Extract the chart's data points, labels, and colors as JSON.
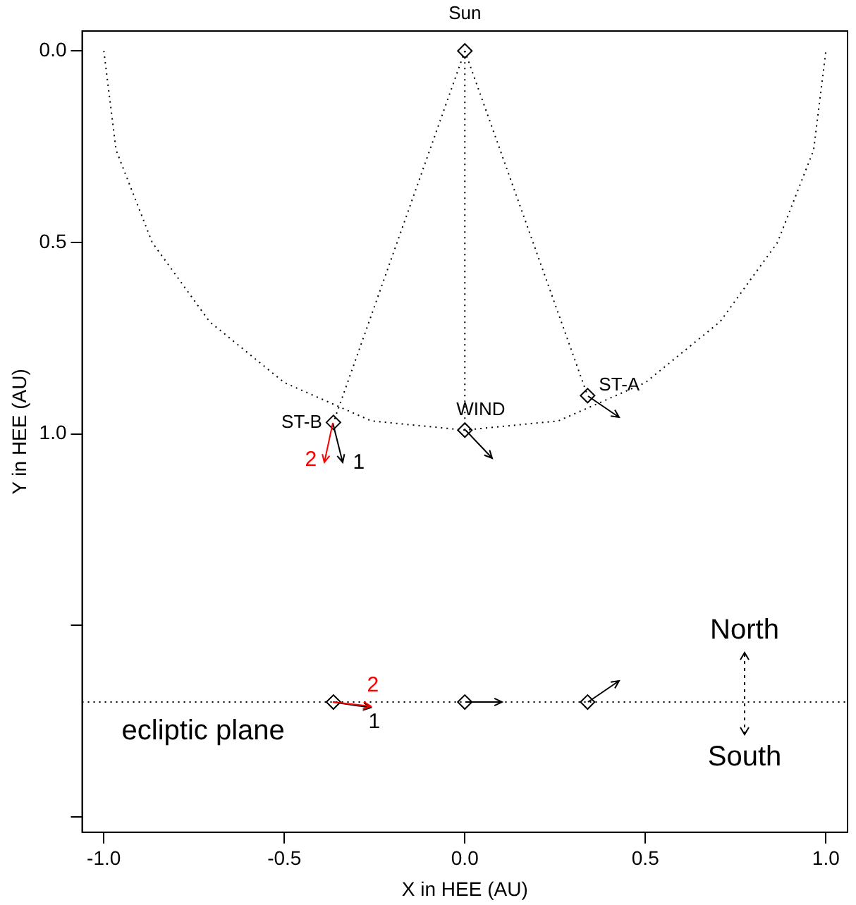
{
  "chart_data": {
    "type": "scatter",
    "xlabel": "X in HEE (AU)",
    "ylabel": "Y in HEE (AU)",
    "xlim": [
      -1.06,
      1.06
    ],
    "ylim": [
      2.04,
      -0.052
    ],
    "xticks": [
      {
        "value": -1,
        "label": "-1.0"
      },
      {
        "value": -0.5,
        "label": "-0.5"
      },
      {
        "value": 0,
        "label": "0.0"
      },
      {
        "value": 0.5,
        "label": "0.5"
      },
      {
        "value": 1,
        "label": "1.0"
      }
    ],
    "yticks": [
      {
        "value": 0,
        "label": "0.0"
      },
      {
        "value": 0.5,
        "label": "0.5"
      },
      {
        "value": 1,
        "label": "1.0"
      },
      {
        "value": 1.5,
        "label": null
      },
      {
        "value": 2,
        "label": null
      }
    ],
    "legend": false,
    "series": [
      {
        "type": "line",
        "line_style": "dotted",
        "marker": "none",
        "color": "#000000",
        "x": [
          -1,
          -0.966,
          -0.866,
          -0.707,
          -0.5,
          -0.259,
          0,
          0.259,
          0.5,
          0.707,
          0.866,
          0.966,
          1
        ],
        "values": [
          0,
          0.259,
          0.5,
          0.707,
          0.866,
          0.966,
          0.99,
          0.966,
          0.866,
          0.707,
          0.5,
          0.259,
          0
        ]
      },
      {
        "type": "line",
        "line_style": "dotted",
        "marker": "none",
        "color": "#000000",
        "x": [
          0,
          -0.364
        ],
        "values": [
          0,
          0.97
        ]
      },
      {
        "type": "line",
        "line_style": "dotted",
        "marker": "none",
        "color": "#000000",
        "x": [
          0,
          0
        ],
        "values": [
          0,
          0.99
        ]
      },
      {
        "type": "line",
        "line_style": "dotted",
        "marker": "none",
        "color": "#000000",
        "x": [
          0,
          0.34
        ],
        "values": [
          0,
          0.9
        ]
      },
      {
        "marker": "diamond",
        "color": "#000000",
        "x": [
          0,
          -0.364,
          0,
          0.34,
          -0.364,
          0,
          0.34
        ],
        "values": [
          0,
          0.97,
          0.99,
          0.9,
          1.7,
          1.7,
          1.7
        ]
      }
    ],
    "ref_lines": [
      {
        "axis": "y",
        "value": 1.7,
        "label": "ecliptic plane",
        "line_style": "dotted",
        "color": "#000000"
      }
    ],
    "annotations": [
      {
        "text": "Sun",
        "x": 0,
        "y": 0
      },
      {
        "text": "ST-B",
        "x": -0.364,
        "y": 0.97
      },
      {
        "text": "WIND",
        "x": 0,
        "y": 0.99
      },
      {
        "text": "ST-A",
        "x": 0.34,
        "y": 0.9
      },
      "North",
      "South",
      "2",
      "1",
      "2",
      "1"
    ]
  }
}
